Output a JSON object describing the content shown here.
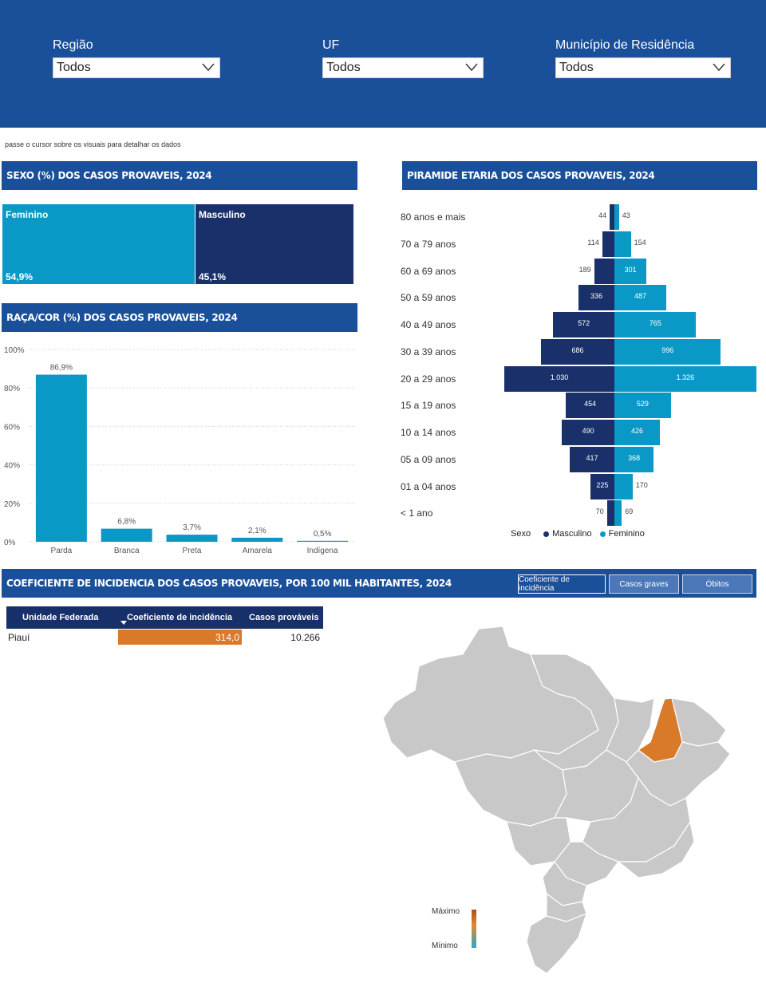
{
  "filters": [
    {
      "label": "Região",
      "value": "Todos"
    },
    {
      "label": "UF",
      "value": "Todos"
    },
    {
      "label": "Município de Residência",
      "value": "Todos"
    }
  ],
  "hint": "passe o cursor sobre os visuais para detalhar os dados",
  "sexo": {
    "title": "SEXO (%) DOS CASOS PROVAVEIS, 2024",
    "feminino": {
      "name": "Feminino",
      "pct": "54,9%",
      "value": 54.9
    },
    "masculino": {
      "name": "Masculino",
      "pct": "45,1%",
      "value": 45.1
    }
  },
  "raca": {
    "title": "RAÇA/COR (%) DOS CASOS PROVAVEIS, 2024"
  },
  "piramide": {
    "title": "PIRAMIDE ETARIA DOS CASOS PROVAVEIS, 2024",
    "legend_title": "Sexo",
    "legend_m": "Masculino",
    "legend_f": "Feminino"
  },
  "incidencia": {
    "title": "COEFICIENTE DE INCIDENCIA DOS CASOS PROVAVEIS, POR 100 MIL HABITANTES, 2024",
    "buttons": [
      "Coeficiente de incidência",
      "Casos graves",
      "Óbitos"
    ],
    "columns": [
      "Unidade Federada",
      "Coeficiente de incidência",
      "Casos prováveis"
    ],
    "rows": [
      {
        "uf": "Piauí",
        "coef": "314,0",
        "casos": "10.266"
      }
    ],
    "legend_max": "Máximo",
    "legend_min": "Mínimo"
  },
  "colors": {
    "navy": "#19306a",
    "cyan": "#0a98c6",
    "header": "#1a4f9a",
    "highlight": "#d9792a"
  },
  "chart_data": [
    {
      "type": "bar",
      "title": "RAÇA/COR (%) DOS CASOS PROVAVEIS, 2024",
      "categories": [
        "Parda",
        "Branca",
        "Preta",
        "Amarela",
        "Indígena"
      ],
      "values": [
        86.9,
        6.8,
        3.7,
        2.1,
        0.5
      ],
      "labels": [
        "86,9%",
        "6,8%",
        "3,7%",
        "2,1%",
        "0,5%"
      ],
      "yticks": [
        "0%",
        "20%",
        "40%",
        "60%",
        "80%",
        "100%"
      ],
      "ylim": [
        0,
        100
      ]
    },
    {
      "type": "bar",
      "title": "PIRAMIDE ETARIA DOS CASOS PROVAVEIS, 2024",
      "categories": [
        "80 anos e mais",
        "70 a 79 anos",
        "60 a 69 anos",
        "50 a 59 anos",
        "40 a 49 anos",
        "30 a 39 anos",
        "20 a 29 anos",
        "15 a 19 anos",
        "10 a 14 anos",
        "05 a 09 anos",
        "01 a 04 anos",
        "< 1 ano"
      ],
      "series": [
        {
          "name": "Masculino",
          "values": [
            44,
            114,
            189,
            336,
            572,
            686,
            1030,
            454,
            490,
            417,
            225,
            70
          ],
          "labels": [
            "44",
            "114",
            "189",
            "336",
            "572",
            "686",
            "1.030",
            "454",
            "490",
            "417",
            "225",
            "70"
          ]
        },
        {
          "name": "Feminino",
          "values": [
            43,
            154,
            301,
            487,
            765,
            996,
            1326,
            529,
            426,
            368,
            170,
            69
          ],
          "labels": [
            "43",
            "154",
            "301",
            "487",
            "765",
            "996",
            "1.326",
            "529",
            "426",
            "368",
            "170",
            "69"
          ]
        }
      ]
    }
  ]
}
